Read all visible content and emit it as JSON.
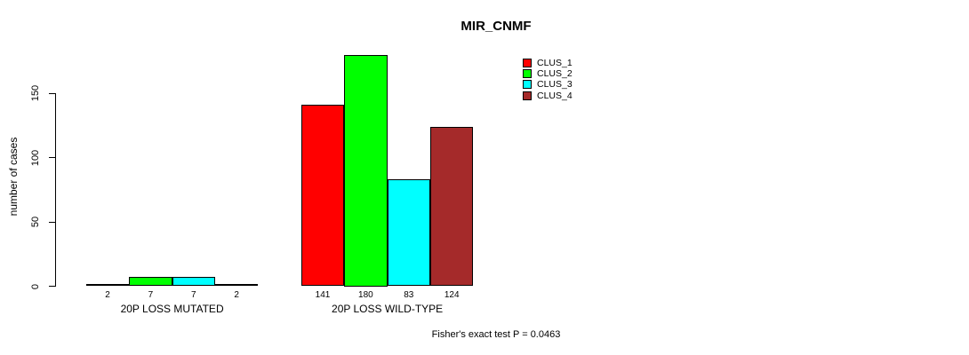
{
  "chart_data": {
    "type": "bar",
    "title": "MIR_CNMF",
    "ylabel": "number of cases",
    "xlabel": "",
    "annotation": "Fisher's exact test P = 0.0463",
    "categories": [
      "20P LOSS MUTATED",
      "20P LOSS WILD-TYPE"
    ],
    "series": [
      {
        "name": "CLUS_1",
        "color": "#ff0000",
        "values": [
          2,
          141
        ]
      },
      {
        "name": "CLUS_2",
        "color": "#00ff00",
        "values": [
          7,
          180
        ]
      },
      {
        "name": "CLUS_3",
        "color": "#00ffff",
        "values": [
          7,
          83
        ]
      },
      {
        "name": "CLUS_4",
        "color": "#a52a2a",
        "values": [
          2,
          124
        ]
      }
    ],
    "yticks": [
      0,
      50,
      100,
      150
    ],
    "ylim": [
      0,
      150
    ],
    "bar_value_labels_shown": true,
    "legend_position": "top-right",
    "grid": false,
    "background_color": "#ffffff",
    "bar_border_color": "#000000"
  }
}
